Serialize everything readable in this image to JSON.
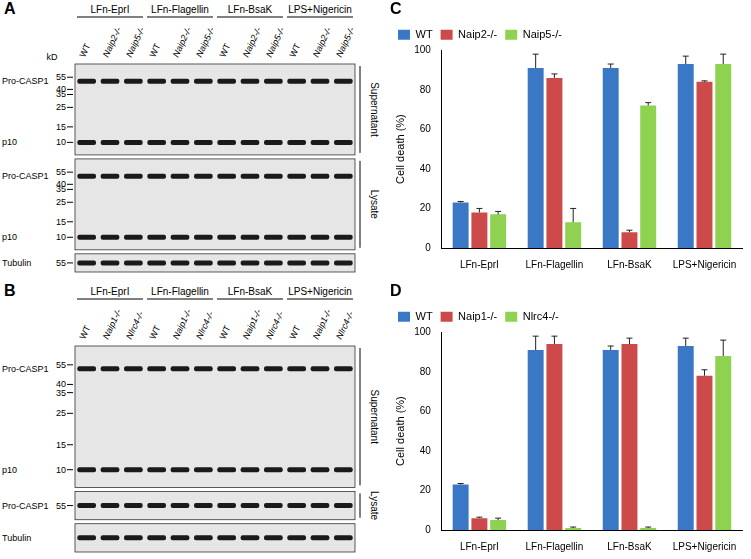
{
  "blots": [
    {
      "panel": "A",
      "unit": "kD",
      "groups": [
        "LFn-EprI",
        "LFn-Flagellin",
        "LFn-BsaK",
        "LPS+Nigericin"
      ],
      "lanes": [
        "WT",
        "Naip2-/-",
        "Naip5-/-"
      ],
      "sections": [
        {
          "name": "Supernatant",
          "markers": [
            55,
            40,
            35,
            25,
            15,
            10
          ],
          "bands": [
            "Pro-CASP1",
            "p10"
          ]
        },
        {
          "name": "Lysate",
          "markers": [
            55,
            40,
            35,
            25,
            15,
            10
          ],
          "bands": [
            "Pro-CASP1",
            "p10"
          ]
        },
        {
          "markers": [
            55
          ],
          "bands": [
            "Tubulin"
          ]
        }
      ]
    },
    {
      "panel": "B",
      "groups": [
        "LFn-EprI",
        "LFn-Flagellin",
        "LFn-BsaK",
        "LPS+Nigericin"
      ],
      "lanes": [
        "WT",
        "Naip1-/-",
        "Nlrc4-/-"
      ],
      "sections": [
        {
          "name": "Supernatant",
          "markers": [
            55,
            40,
            35,
            25,
            15,
            10
          ],
          "bands": [
            "Pro-CASP1",
            "p10"
          ]
        },
        {
          "name": "Lysate",
          "markers": [
            55
          ],
          "bands": [
            "Pro-CASP1"
          ]
        },
        {
          "markers": [],
          "bands": [
            "Tubulin"
          ]
        }
      ]
    }
  ],
  "chart_data": [
    {
      "type": "bar",
      "title": "C",
      "categories": [
        "LFn-EprI",
        "LFn-Flagellin",
        "LFn-BsaK",
        "LPS+Nigericin"
      ],
      "series": [
        {
          "name": "WT",
          "color": "#3a78c6",
          "values": [
            23,
            91,
            91,
            93
          ],
          "errors": [
            0.5,
            7,
            2,
            4
          ]
        },
        {
          "name": "Naip2-/-",
          "color": "#cc4a4a",
          "values": [
            18,
            86,
            8,
            84
          ],
          "errors": [
            2,
            2,
            1,
            0.5
          ]
        },
        {
          "name": "Naip5-/-",
          "color": "#8fd150",
          "values": [
            17,
            13,
            72,
            93
          ],
          "errors": [
            1.5,
            7,
            1.5,
            5
          ]
        }
      ],
      "ylim": [
        0,
        100
      ],
      "yticks": [
        0,
        20,
        40,
        60,
        80,
        100
      ],
      "y_label": "Cell death (%)",
      "legend": "top",
      "grid": false
    },
    {
      "type": "bar",
      "title": "D",
      "categories": [
        "LFn-EprI",
        "LFn-Flagellin",
        "LFn-BsaK",
        "LPS+Nigericin"
      ],
      "series": [
        {
          "name": "WT",
          "color": "#3a78c6",
          "values": [
            23,
            91,
            91,
            93
          ],
          "errors": [
            0.5,
            7,
            2,
            4
          ]
        },
        {
          "name": "Naip1-/-",
          "color": "#cc4a4a",
          "values": [
            6,
            94,
            94,
            78
          ],
          "errors": [
            0.5,
            4,
            3,
            3
          ]
        },
        {
          "name": "Nlrc4-/-",
          "color": "#8fd150",
          "values": [
            5,
            1,
            1,
            88
          ],
          "errors": [
            1,
            0.5,
            0.5,
            8
          ]
        }
      ],
      "ylim": [
        0,
        100
      ],
      "yticks": [
        0,
        20,
        40,
        60,
        80,
        100
      ],
      "y_label": "Cell death (%)",
      "legend": "top",
      "grid": false
    }
  ]
}
